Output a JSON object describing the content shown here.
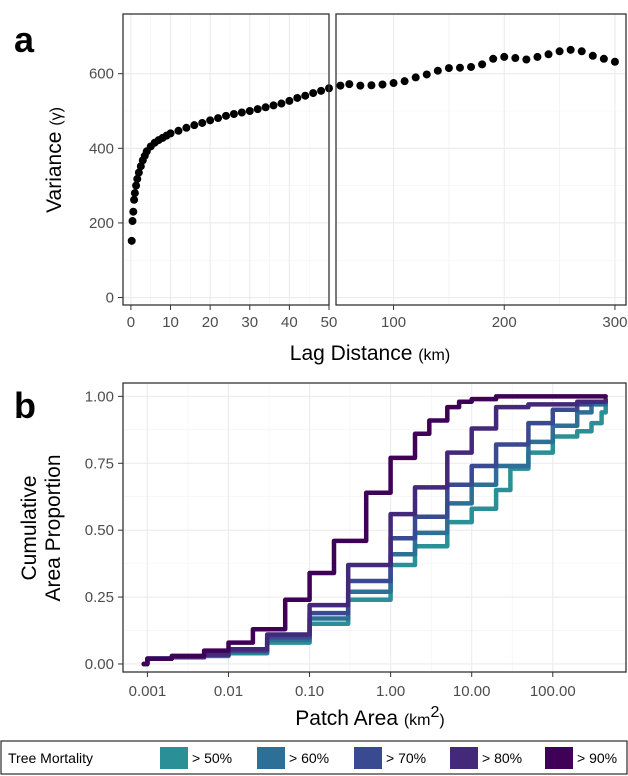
{
  "chart_data": [
    {
      "panel": "a",
      "type": "scatter",
      "xlabel": "Lag Distance",
      "xlabel_unit": "(km)",
      "ylabel": "Variance",
      "ylabel_unit": "(γ)",
      "grid": true,
      "legend": "none",
      "ylim": [
        -20,
        760
      ],
      "yticks": [
        0,
        200,
        400,
        600
      ],
      "facets": [
        {
          "xlim": [
            -2,
            50
          ],
          "xticks": [
            0,
            10,
            20,
            30,
            40,
            50
          ],
          "x": [
            0.2,
            0.4,
            0.6,
            0.8,
            1,
            1.3,
            1.6,
            2,
            2.5,
            3,
            3.5,
            4,
            5,
            6,
            7,
            8,
            9,
            10,
            12,
            14,
            16,
            18,
            20,
            22,
            24,
            26,
            28,
            30,
            32,
            34,
            36,
            38,
            40,
            42,
            44,
            46,
            48,
            50
          ],
          "y": [
            152,
            205,
            230,
            262,
            280,
            300,
            318,
            335,
            352,
            368,
            380,
            392,
            405,
            415,
            422,
            428,
            434,
            440,
            447,
            455,
            462,
            468,
            475,
            481,
            487,
            492,
            496,
            500,
            505,
            510,
            515,
            520,
            527,
            535,
            541,
            548,
            554,
            561
          ]
        },
        {
          "xlim": [
            48,
            310
          ],
          "xticks": [
            100,
            200,
            300
          ],
          "x": [
            52,
            60,
            70,
            80,
            90,
            100,
            110,
            120,
            130,
            140,
            150,
            160,
            170,
            180,
            190,
            200,
            210,
            220,
            230,
            240,
            250,
            260,
            270,
            280,
            290,
            300
          ],
          "y": [
            568,
            572,
            568,
            569,
            571,
            575,
            580,
            590,
            598,
            608,
            615,
            616,
            618,
            625,
            640,
            645,
            642,
            638,
            645,
            652,
            660,
            664,
            660,
            648,
            640,
            632
          ]
        }
      ]
    },
    {
      "panel": "b",
      "type": "line",
      "xscale": "log",
      "xlabel": "Patch Area",
      "xlabel_unit": "(km",
      "xlabel_unit_sup": "2",
      "xlabel_unit_close": ")",
      "ylabel_line1": "Cumulative",
      "ylabel_line2": "Area Proportion",
      "xlim": [
        0.0005,
        800
      ],
      "ylim": [
        -0.03,
        1.05
      ],
      "xticks": [
        0.001,
        0.01,
        0.1,
        1,
        10,
        100
      ],
      "xticklabels": [
        "0.001",
        "0.01",
        "0.10",
        "1.00",
        "10.00",
        "100.00"
      ],
      "yticks": [
        0,
        0.25,
        0.5,
        0.75,
        1.0
      ],
      "yticklabels": [
        "0.00",
        "0.25",
        "0.50",
        "0.75",
        "1.00"
      ],
      "grid": true,
      "legend": "bottom",
      "legend_title": "Tree Mortality",
      "series": [
        {
          "name": "> 50%",
          "color": "#2a8f96",
          "x": [
            0.0009,
            0.001,
            0.002,
            0.005,
            0.01,
            0.03,
            0.1,
            0.3,
            1,
            2,
            5,
            10,
            20,
            30,
            50,
            100,
            200,
            300,
            400,
            450
          ],
          "y": [
            0,
            0.02,
            0.025,
            0.03,
            0.04,
            0.08,
            0.15,
            0.24,
            0.37,
            0.44,
            0.53,
            0.58,
            0.65,
            0.73,
            0.79,
            0.85,
            0.87,
            0.9,
            0.94,
            0.97
          ]
        },
        {
          "name": "> 60%",
          "color": "#2d6f96",
          "x": [
            0.0009,
            0.001,
            0.002,
            0.005,
            0.01,
            0.03,
            0.1,
            0.3,
            1,
            2,
            5,
            10,
            20,
            50,
            100,
            200,
            300,
            450
          ],
          "y": [
            0,
            0.02,
            0.025,
            0.03,
            0.045,
            0.09,
            0.17,
            0.27,
            0.41,
            0.49,
            0.6,
            0.67,
            0.74,
            0.83,
            0.89,
            0.94,
            0.97,
            0.98
          ]
        },
        {
          "name": "> 70%",
          "color": "#3a4a90",
          "x": [
            0.0009,
            0.001,
            0.002,
            0.005,
            0.01,
            0.03,
            0.1,
            0.3,
            1,
            2,
            5,
            10,
            20,
            50,
            100,
            200,
            300,
            450
          ],
          "y": [
            0,
            0.02,
            0.025,
            0.035,
            0.05,
            0.1,
            0.19,
            0.31,
            0.47,
            0.55,
            0.67,
            0.74,
            0.82,
            0.9,
            0.95,
            0.97,
            0.98,
            0.98
          ]
        },
        {
          "name": "> 80%",
          "color": "#44287a",
          "x": [
            0.0009,
            0.001,
            0.002,
            0.005,
            0.01,
            0.03,
            0.1,
            0.3,
            1,
            2,
            5,
            10,
            20,
            50,
            100,
            200,
            450
          ],
          "y": [
            0,
            0.02,
            0.025,
            0.035,
            0.055,
            0.11,
            0.22,
            0.37,
            0.56,
            0.66,
            0.79,
            0.88,
            0.96,
            0.97,
            0.97,
            0.98,
            0.99
          ]
        },
        {
          "name": "> 90%",
          "color": "#3f0058",
          "x": [
            0.0009,
            0.001,
            0.002,
            0.005,
            0.01,
            0.02,
            0.05,
            0.1,
            0.2,
            0.5,
            1,
            2,
            3,
            5,
            7,
            10,
            20,
            50,
            100,
            200,
            450
          ],
          "y": [
            0,
            0.02,
            0.03,
            0.05,
            0.08,
            0.13,
            0.24,
            0.34,
            0.46,
            0.64,
            0.77,
            0.86,
            0.91,
            0.96,
            0.98,
            0.99,
            1,
            1,
            1,
            1,
            1
          ]
        }
      ]
    }
  ]
}
